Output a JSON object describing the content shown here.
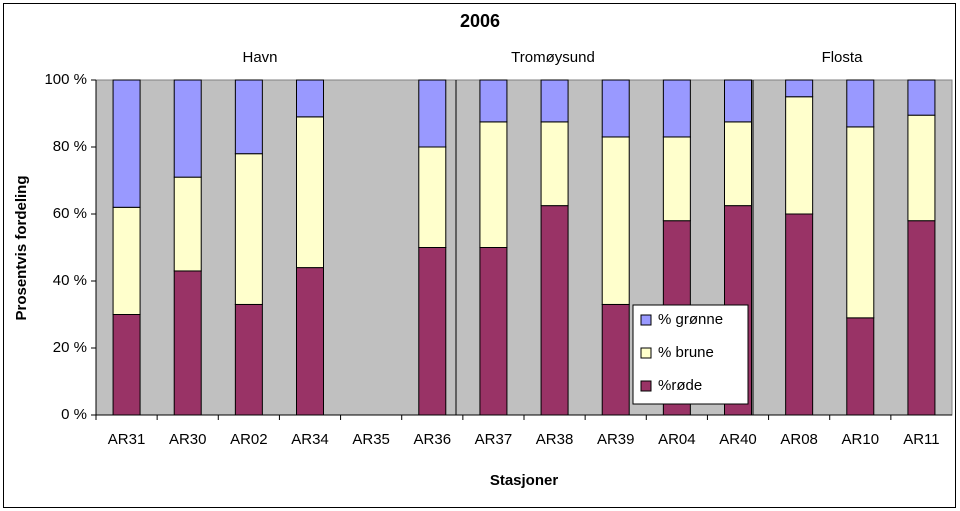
{
  "chart_data": {
    "type": "stacked_bar",
    "title": "2006",
    "x_label": "Stasjoner",
    "y_label": "Prosentvis fordeling",
    "annotations": [
      "Havn",
      "Tromøysund",
      "Flosta"
    ],
    "categories": [
      "AR31",
      "AR30",
      "AR02",
      "AR34",
      "AR35",
      "AR36",
      "AR37",
      "AR38",
      "AR39",
      "AR04",
      "AR40",
      "AR08",
      "AR10",
      "AR11"
    ],
    "series": [
      {
        "name": "%røde",
        "color": "#993366",
        "values": [
          30,
          43,
          33,
          44,
          null,
          50,
          50,
          62.5,
          33,
          58,
          62.5,
          60,
          29,
          58
        ]
      },
      {
        "name": "% brune",
        "color": "#ffffcc",
        "values": [
          32,
          28,
          45,
          45,
          null,
          30,
          37.5,
          25,
          50,
          25,
          25,
          35,
          57,
          31.5
        ]
      },
      {
        "name": "% grønne",
        "color": "#9999ff",
        "values": [
          38,
          29,
          22,
          11,
          null,
          20,
          12.5,
          12.5,
          17,
          17,
          12.5,
          5,
          14,
          10.5
        ]
      }
    ],
    "ylim": [
      0,
      100
    ],
    "yticks": [
      {
        "value": 0,
        "label": "0 %"
      },
      {
        "value": 20,
        "label": "20 %"
      },
      {
        "value": 40,
        "label": "40 %"
      },
      {
        "value": 60,
        "label": "60 %"
      },
      {
        "value": 80,
        "label": "80 %"
      },
      {
        "value": 100,
        "label": "100 %"
      }
    ],
    "plot_background": "#c0c0c0"
  }
}
